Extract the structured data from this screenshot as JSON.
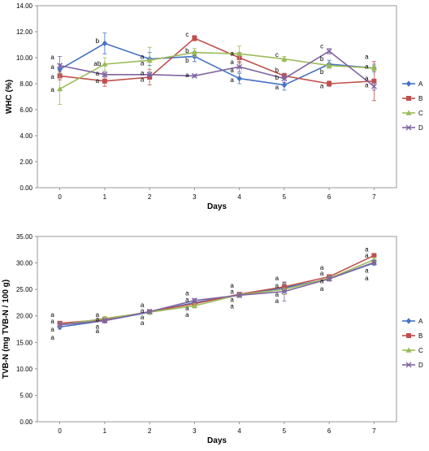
{
  "chart_data": [
    {
      "type": "line",
      "ylabel": "WHC (%)",
      "xlabel": "Days",
      "x": [
        0,
        1,
        2,
        3,
        4,
        5,
        6,
        7
      ],
      "ylim": [
        0,
        14
      ],
      "y_ticks": [
        "0.00",
        "2.00",
        "4.00",
        "6.00",
        "8.00",
        "10.00",
        "12.00",
        "14.00"
      ],
      "grid": false,
      "legend": "right",
      "series": [
        {
          "name": "A",
          "color": "#4472c4",
          "marker": "diamond",
          "values": [
            9.1,
            11.1,
            9.9,
            10.1,
            8.4,
            7.9,
            9.5,
            9.2
          ],
          "err": [
            0.4,
            0.8,
            0.5,
            0.4,
            0.4,
            0.4,
            0.3,
            0.3
          ]
        },
        {
          "name": "B",
          "color": "#c0504d",
          "marker": "square",
          "values": [
            8.6,
            8.2,
            8.5,
            11.5,
            10.0,
            8.6,
            8.0,
            8.2
          ],
          "err": [
            0.3,
            0.4,
            0.6,
            0.2,
            0.4,
            0.2,
            0.2,
            1.5
          ]
        },
        {
          "name": "C",
          "color": "#9bbb59",
          "marker": "triangle",
          "values": [
            7.6,
            9.5,
            9.8,
            10.4,
            10.3,
            9.9,
            9.4,
            9.2
          ],
          "err": [
            1.2,
            0.5,
            1.0,
            0.3,
            0.6,
            0.2,
            0.2,
            0.2
          ]
        },
        {
          "name": "D",
          "color": "#8064a2",
          "marker": "x",
          "values": [
            9.4,
            8.7,
            8.7,
            8.6,
            9.3,
            8.4,
            10.5,
            7.8
          ],
          "err": [
            0.7,
            0.2,
            0.2,
            0.1,
            0.4,
            0.3,
            0.2,
            0.3
          ]
        }
      ],
      "annotations": [
        {
          "x": 0,
          "y": 10.05,
          "text": "a"
        },
        {
          "x": 0,
          "y": 9.3,
          "text": "a"
        },
        {
          "x": 0,
          "y": 8.55,
          "text": "a"
        },
        {
          "x": 0,
          "y": 7.55,
          "text": "a"
        },
        {
          "x": 1,
          "y": 11.3,
          "text": "b"
        },
        {
          "x": 1,
          "y": 9.55,
          "text": "ab"
        },
        {
          "x": 1,
          "y": 8.8,
          "text": "a"
        },
        {
          "x": 1,
          "y": 8.25,
          "text": "a"
        },
        {
          "x": 2,
          "y": 10.1,
          "text": "a"
        },
        {
          "x": 2,
          "y": 9.6,
          "text": "a"
        },
        {
          "x": 2,
          "y": 8.85,
          "text": "a"
        },
        {
          "x": 2,
          "y": 8.35,
          "text": "a"
        },
        {
          "x": 3,
          "y": 11.8,
          "text": "c"
        },
        {
          "x": 3,
          "y": 10.55,
          "text": "b"
        },
        {
          "x": 3,
          "y": 9.8,
          "text": "b"
        },
        {
          "x": 3,
          "y": 8.7,
          "text": "a"
        },
        {
          "x": 4,
          "y": 10.35,
          "text": "a"
        },
        {
          "x": 4,
          "y": 9.7,
          "text": "a"
        },
        {
          "x": 4,
          "y": 9.05,
          "text": "a"
        },
        {
          "x": 4,
          "y": 8.3,
          "text": "a"
        },
        {
          "x": 5,
          "y": 10.25,
          "text": "c"
        },
        {
          "x": 5,
          "y": 9.05,
          "text": "b"
        },
        {
          "x": 5,
          "y": 8.5,
          "text": "b"
        },
        {
          "x": 5,
          "y": 7.75,
          "text": "a"
        },
        {
          "x": 6,
          "y": 10.9,
          "text": "c"
        },
        {
          "x": 6,
          "y": 9.95,
          "text": "b"
        },
        {
          "x": 6,
          "y": 8.95,
          "text": "b"
        },
        {
          "x": 6,
          "y": 7.85,
          "text": "a"
        },
        {
          "x": 7,
          "y": 10.1,
          "text": "a"
        },
        {
          "x": 7,
          "y": 9.35,
          "text": "a"
        },
        {
          "x": 7,
          "y": 8.45,
          "text": "a"
        },
        {
          "x": 7,
          "y": 7.9,
          "text": "a"
        }
      ]
    },
    {
      "type": "line",
      "ylabel": "TVB-N (mg TVB-N / 100 g)",
      "xlabel": "Days",
      "x": [
        0,
        1,
        2,
        3,
        4,
        5,
        6,
        7
      ],
      "ylim": [
        0,
        35
      ],
      "y_ticks": [
        "0.00",
        "5.00",
        "10.00",
        "15.00",
        "20.00",
        "25.00",
        "30.00",
        "35.00"
      ],
      "grid": false,
      "legend": "right",
      "series": [
        {
          "name": "A",
          "color": "#4472c4",
          "marker": "diamond",
          "values": [
            17.9,
            19.1,
            20.7,
            22.5,
            24.0,
            25.3,
            27.0,
            30.0
          ],
          "err": [
            0.4,
            0.4,
            0.3,
            0.5,
            0.4,
            0.8,
            0.4,
            0.4
          ]
        },
        {
          "name": "B",
          "color": "#c0504d",
          "marker": "square",
          "values": [
            18.6,
            19.3,
            20.8,
            22.3,
            24.1,
            25.5,
            27.4,
            31.4
          ],
          "err": [
            0.3,
            0.3,
            0.3,
            0.4,
            0.3,
            0.8,
            0.4,
            0.4
          ]
        },
        {
          "name": "C",
          "color": "#9bbb59",
          "marker": "triangle",
          "values": [
            18.3,
            19.5,
            20.7,
            21.9,
            24.0,
            25.0,
            27.1,
            30.6
          ],
          "err": [
            0.3,
            0.4,
            0.3,
            0.4,
            0.4,
            1.0,
            0.4,
            0.4
          ]
        },
        {
          "name": "D",
          "color": "#8064a2",
          "marker": "x",
          "values": [
            18.3,
            19.1,
            20.8,
            22.9,
            23.9,
            24.6,
            27.0,
            30.1
          ],
          "err": [
            0.3,
            0.4,
            0.3,
            0.4,
            0.4,
            1.8,
            0.4,
            0.4
          ]
        }
      ],
      "annotations": [
        {
          "x": 0,
          "y": 20.3,
          "text": "a"
        },
        {
          "x": 0,
          "y": 19.0,
          "text": "a"
        },
        {
          "x": 0,
          "y": 17.5,
          "text": "a"
        },
        {
          "x": 0,
          "y": 16.0,
          "text": "a"
        },
        {
          "x": 1,
          "y": 20.3,
          "text": "a"
        },
        {
          "x": 1,
          "y": 19.4,
          "text": "a"
        },
        {
          "x": 1,
          "y": 18.0,
          "text": "a"
        },
        {
          "x": 1,
          "y": 17.2,
          "text": "a"
        },
        {
          "x": 2,
          "y": 22.1,
          "text": "a"
        },
        {
          "x": 2,
          "y": 21.0,
          "text": "a"
        },
        {
          "x": 2,
          "y": 19.8,
          "text": "a"
        },
        {
          "x": 2,
          "y": 18.7,
          "text": "a"
        },
        {
          "x": 3,
          "y": 24.3,
          "text": "a"
        },
        {
          "x": 3,
          "y": 23.1,
          "text": "a"
        },
        {
          "x": 3,
          "y": 21.5,
          "text": "a"
        },
        {
          "x": 3,
          "y": 20.3,
          "text": "a"
        },
        {
          "x": 4,
          "y": 25.8,
          "text": "a"
        },
        {
          "x": 4,
          "y": 24.6,
          "text": "a"
        },
        {
          "x": 4,
          "y": 23.1,
          "text": "a"
        },
        {
          "x": 4,
          "y": 21.9,
          "text": "a"
        },
        {
          "x": 5,
          "y": 27.2,
          "text": "a"
        },
        {
          "x": 5,
          "y": 25.8,
          "text": "a"
        },
        {
          "x": 5,
          "y": 24.1,
          "text": "a"
        },
        {
          "x": 5,
          "y": 22.9,
          "text": "a"
        },
        {
          "x": 6,
          "y": 29.2,
          "text": "a"
        },
        {
          "x": 6,
          "y": 28.1,
          "text": "a"
        },
        {
          "x": 6,
          "y": 26.6,
          "text": "a"
        },
        {
          "x": 6,
          "y": 25.2,
          "text": "a"
        },
        {
          "x": 7,
          "y": 32.6,
          "text": "a"
        },
        {
          "x": 7,
          "y": 31.5,
          "text": "a"
        },
        {
          "x": 7,
          "y": 28.6,
          "text": "a"
        },
        {
          "x": 7,
          "y": 27.2,
          "text": "a"
        }
      ]
    }
  ]
}
